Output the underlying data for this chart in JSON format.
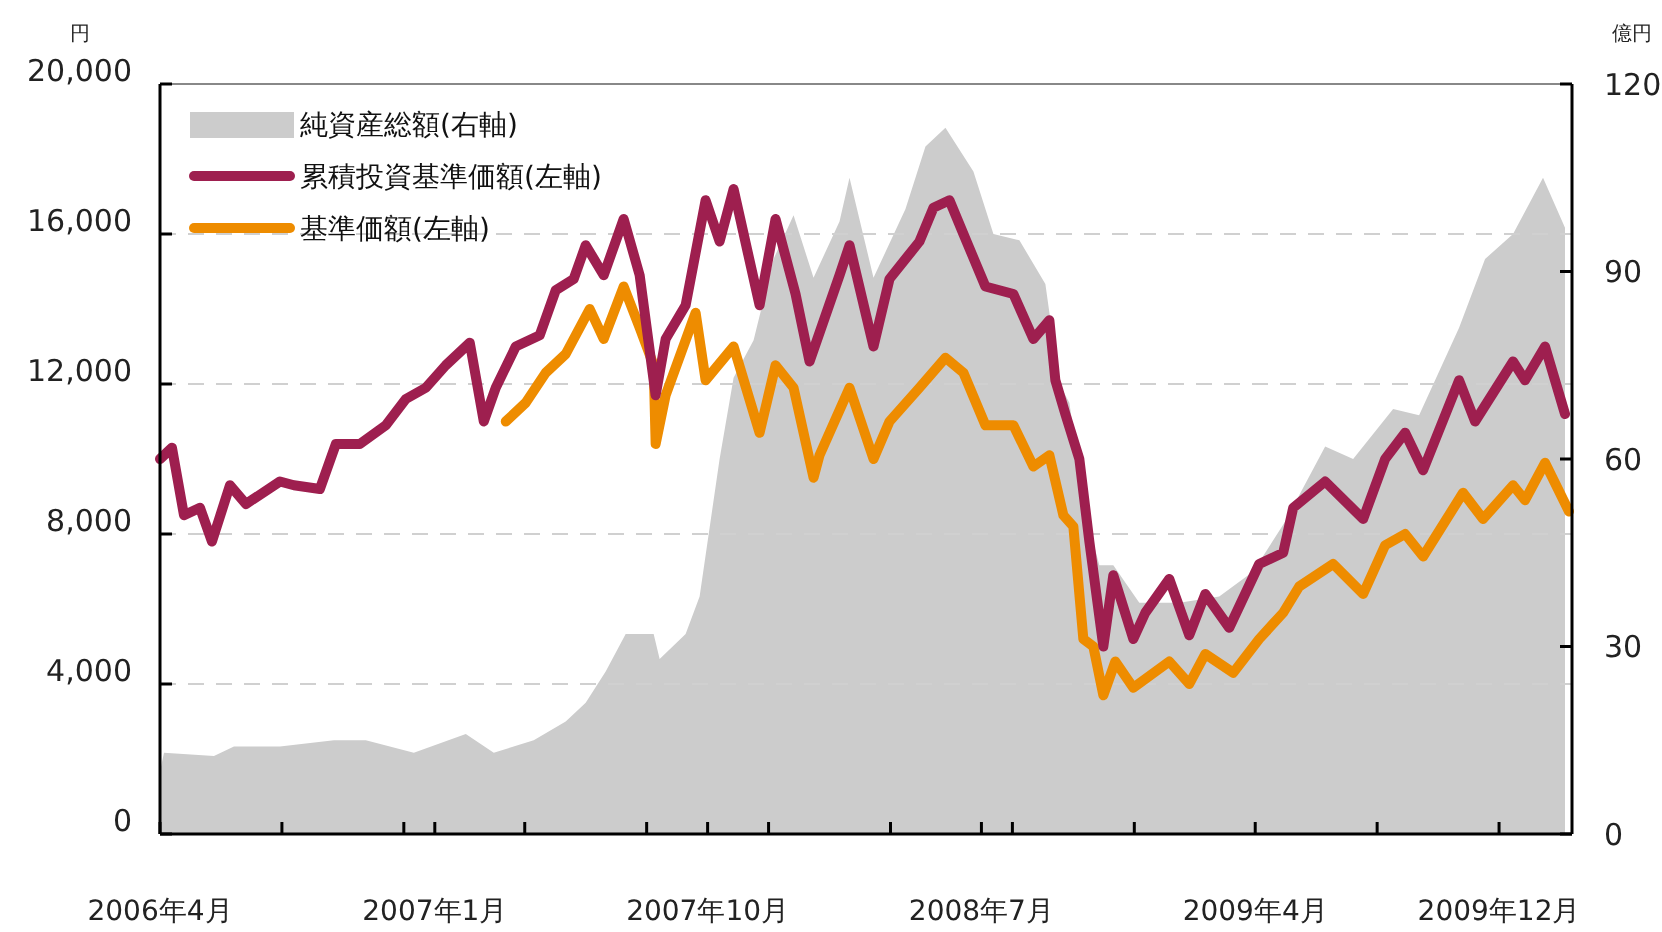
{
  "chart_data": {
    "type": "line",
    "ylabel": "円",
    "y2label": "億円",
    "xlim": [
      "2006-04-01",
      "2010-02-12"
    ],
    "xticks": [
      {
        "value": "2006-04-01",
        "label": "2006年4月"
      },
      {
        "value": "2006-08-01",
        "label": null
      },
      {
        "value": "2006-12-01",
        "label": null
      },
      {
        "value": "2007-01-01",
        "label": "2007年1月"
      },
      {
        "value": "2007-04-01",
        "label": null
      },
      {
        "value": "2007-08-01",
        "label": null
      },
      {
        "value": "2007-10-01",
        "label": "2007年10月"
      },
      {
        "value": "2007-12-01",
        "label": null
      },
      {
        "value": "2008-04-01",
        "label": null
      },
      {
        "value": "2008-07-01",
        "label": "2008年7月"
      },
      {
        "value": "2008-08-01",
        "label": null
      },
      {
        "value": "2008-12-01",
        "label": null
      },
      {
        "value": "2009-04-01",
        "label": "2009年4月"
      },
      {
        "value": "2009-08-01",
        "label": null
      },
      {
        "value": "2009-12-01",
        "label": "2009年12月"
      }
    ],
    "ylim": [
      0,
      20000
    ],
    "yticks": [
      {
        "value": 0,
        "label": "0"
      },
      {
        "value": 4000,
        "label": "4,000"
      },
      {
        "value": 8000,
        "label": "8,000"
      },
      {
        "value": 12000,
        "label": "12,000"
      },
      {
        "value": 16000,
        "label": "16,000"
      },
      {
        "value": 20000,
        "label": "20,000"
      }
    ],
    "y2lim": [
      0,
      120
    ],
    "y2ticks": [
      0,
      30,
      60,
      90,
      120
    ],
    "grid": "y",
    "legend": "top left",
    "line_style": "solid",
    "series": [
      {
        "name": "純資産総額(右軸)",
        "type": "area",
        "axis": "y2",
        "color": "#cccccc",
        "x": [
          "2006-04-01",
          "2006-04-05",
          "2006-05-25",
          "2006-06-14",
          "2006-07-30",
          "2006-09-22",
          "2006-10-24",
          "2006-12-11",
          "2007-02-01",
          "2007-03-01",
          "2007-04-10",
          "2007-05-12",
          "2007-06-01",
          "2007-06-21",
          "2007-07-11",
          "2007-08-08",
          "2007-08-14",
          "2007-09-09",
          "2007-09-23",
          "2007-10-03",
          "2007-10-13",
          "2007-10-27",
          "2007-11-16",
          "2007-12-06",
          "2007-12-26",
          "2008-01-15",
          "2008-02-10",
          "2008-02-20",
          "2008-03-15",
          "2008-04-16",
          "2008-05-06",
          "2008-05-26",
          "2008-06-23",
          "2008-07-13",
          "2008-08-08",
          "2008-09-03",
          "2008-09-17",
          "2008-09-27",
          "2008-10-07",
          "2008-10-17",
          "2008-10-27",
          "2008-11-10",
          "2008-12-06",
          "2009-01-15",
          "2009-02-24",
          "2009-03-30",
          "2009-05-01",
          "2009-06-10",
          "2009-07-08",
          "2009-08-17",
          "2009-09-12",
          "2009-10-22",
          "2009-11-17",
          "2009-12-15",
          "2010-01-14",
          "2010-02-05"
        ],
        "values": [
          10,
          13,
          12.5,
          14,
          14,
          15,
          15,
          13,
          16,
          13,
          15,
          18,
          21,
          26,
          32,
          32,
          28,
          32,
          38,
          49,
          60,
          73,
          79,
          92,
          99,
          89,
          98,
          105,
          89,
          100,
          110,
          113,
          106,
          96,
          95,
          88,
          72,
          69,
          58,
          49,
          43,
          43,
          37,
          37,
          38,
          42,
          50,
          62,
          60,
          68,
          67,
          81,
          92,
          96,
          105,
          97
        ]
      },
      {
        "name": "累積投資基準価額(左軸)",
        "color": "#9e1f4f",
        "x": [
          "2006-04-01",
          "2006-04-13",
          "2006-04-25",
          "2006-05-11",
          "2006-05-23",
          "2006-06-10",
          "2006-06-26",
          "2006-07-30",
          "2006-08-13",
          "2006-09-08",
          "2006-09-24",
          "2006-10-18",
          "2006-11-13",
          "2006-12-03",
          "2006-12-23",
          "2007-01-12",
          "2007-02-05",
          "2007-02-19",
          "2007-03-03",
          "2007-03-23",
          "2007-04-16",
          "2007-05-02",
          "2007-05-20",
          "2007-06-01",
          "2007-06-19",
          "2007-07-09",
          "2007-07-25",
          "2007-08-10",
          "2007-08-20",
          "2007-09-09",
          "2007-09-29",
          "2007-10-13",
          "2007-10-27",
          "2007-11-22",
          "2007-12-08",
          "2007-12-28",
          "2008-01-11",
          "2008-02-10",
          "2008-02-20",
          "2008-03-15",
          "2008-03-31",
          "2008-04-30",
          "2008-05-14",
          "2008-05-30",
          "2008-06-13",
          "2008-07-05",
          "2008-08-02",
          "2008-08-22",
          "2008-09-07",
          "2008-09-13",
          "2008-09-23",
          "2008-10-07",
          "2008-10-17",
          "2008-10-31",
          "2008-11-10",
          "2008-11-30",
          "2008-12-12",
          "2009-01-05",
          "2009-01-25",
          "2009-02-10",
          "2009-03-06",
          "2009-04-05",
          "2009-04-29",
          "2009-05-09",
          "2009-06-10",
          "2009-07-18",
          "2009-08-09",
          "2009-08-29",
          "2009-09-16",
          "2009-10-22",
          "2009-11-07",
          "2009-12-15",
          "2009-12-27",
          "2010-01-16",
          "2010-02-05"
        ],
        "values": [
          10000,
          10300,
          8500,
          8700,
          7800,
          9300,
          8800,
          9400,
          9300,
          9200,
          10400,
          10400,
          10900,
          11600,
          11900,
          12500,
          13100,
          11000,
          11900,
          13000,
          13300,
          14500,
          14800,
          15700,
          14900,
          16400,
          14900,
          11700,
          13200,
          14100,
          16900,
          15800,
          17200,
          14100,
          16400,
          14400,
          12600,
          14900,
          15700,
          13000,
          14800,
          15800,
          16700,
          16900,
          16000,
          14600,
          14400,
          13200,
          13700,
          12100,
          11200,
          10000,
          7800,
          5000,
          6900,
          5200,
          5900,
          6800,
          5300,
          6400,
          5500,
          7200,
          7500,
          8700,
          9400,
          8400,
          10000,
          10700,
          9700,
          12100,
          11000,
          12600,
          12100,
          13000,
          11200
        ]
      },
      {
        "name": "基準価額(左軸)",
        "color": "#ee8c00",
        "x": [
          "2007-03-13",
          "2007-04-02",
          "2007-04-22",
          "2007-05-12",
          "2007-06-05",
          "2007-06-19",
          "2007-07-09",
          "2007-07-25",
          "2007-08-08",
          "2007-08-10",
          "2007-08-20",
          "2007-09-19",
          "2007-09-29",
          "2007-10-27",
          "2007-11-22",
          "2007-12-08",
          "2007-12-26",
          "2008-01-15",
          "2008-01-21",
          "2008-02-20",
          "2008-03-15",
          "2008-03-31",
          "2008-04-30",
          "2008-05-26",
          "2008-06-13",
          "2008-07-05",
          "2008-08-02",
          "2008-08-22",
          "2008-09-07",
          "2008-09-21",
          "2008-10-01",
          "2008-10-11",
          "2008-10-21",
          "2008-10-31",
          "2008-11-12",
          "2008-11-30",
          "2009-01-05",
          "2009-01-25",
          "2009-02-10",
          "2009-03-10",
          "2009-04-05",
          "2009-04-29",
          "2009-05-15",
          "2009-06-18",
          "2009-07-18",
          "2009-08-09",
          "2009-08-29",
          "2009-09-16",
          "2009-10-26",
          "2009-11-15",
          "2009-12-15",
          "2009-12-27",
          "2010-01-16",
          "2010-02-09"
        ],
        "values": [
          11000,
          11500,
          12300,
          12800,
          14000,
          13200,
          14600,
          13500,
          12500,
          10400,
          11700,
          13900,
          12100,
          13000,
          10700,
          12500,
          11900,
          9500,
          10100,
          11900,
          10000,
          11000,
          11900,
          12700,
          12300,
          10900,
          10900,
          9800,
          10100,
          8500,
          8200,
          5200,
          5000,
          3700,
          4600,
          3900,
          4600,
          4000,
          4800,
          4300,
          5200,
          5900,
          6600,
          7200,
          6400,
          7700,
          8000,
          7400,
          9100,
          8400,
          9300,
          8900,
          9900,
          8600
        ]
      }
    ]
  }
}
